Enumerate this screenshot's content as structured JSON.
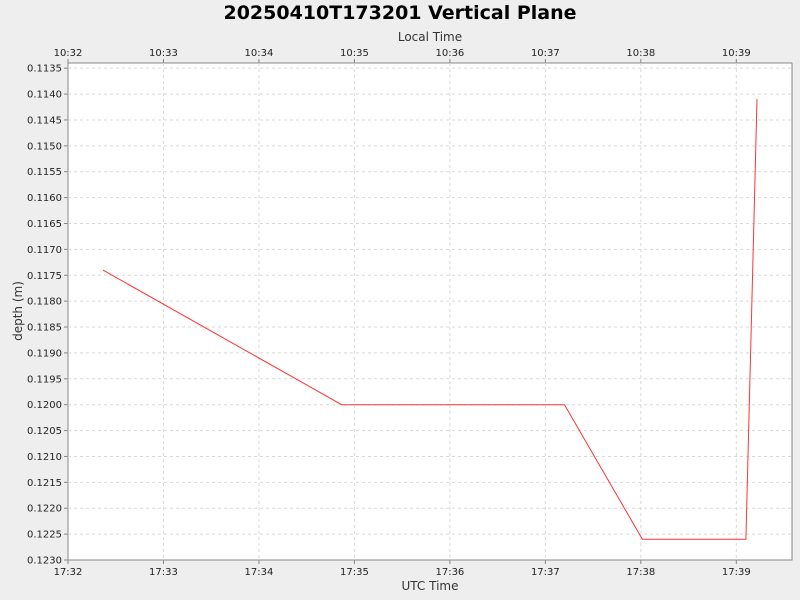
{
  "chart_data": {
    "type": "line",
    "title": "20250410T173201 Vertical Plane",
    "xlabel": "UTC Time",
    "x2label": "Local Time",
    "ylabel": "depth (m)",
    "x_ticks": [
      "17:32",
      "17:33",
      "17:34",
      "17:35",
      "17:36",
      "17:37",
      "17:38",
      "17:39"
    ],
    "x2_ticks": [
      "10:32",
      "10:33",
      "10:34",
      "10:35",
      "10:36",
      "10:37",
      "10:38",
      "10:39"
    ],
    "y_ticks": [
      "0.1135",
      "0.1140",
      "0.1145",
      "0.1150",
      "0.1155",
      "0.1160",
      "0.1165",
      "0.1170",
      "0.1175",
      "0.1180",
      "0.1185",
      "0.1190",
      "0.1195",
      "0.1200",
      "0.1205",
      "0.1210",
      "0.1215",
      "0.1220",
      "0.1225",
      "0.1230"
    ],
    "xlim": [
      "17:32:00",
      "17:39:35"
    ],
    "ylim": [
      0.1134,
      0.123
    ],
    "y_inverted": true,
    "grid": true,
    "series": [
      {
        "color": "#ff3333",
        "x": [
          "17:32:22",
          "17:34:52",
          "17:37:12",
          "17:38:01",
          "17:39:06",
          "17:39:13"
        ],
        "y": [
          0.1174,
          0.12,
          0.12,
          0.1226,
          0.1226,
          0.1141
        ]
      }
    ]
  }
}
